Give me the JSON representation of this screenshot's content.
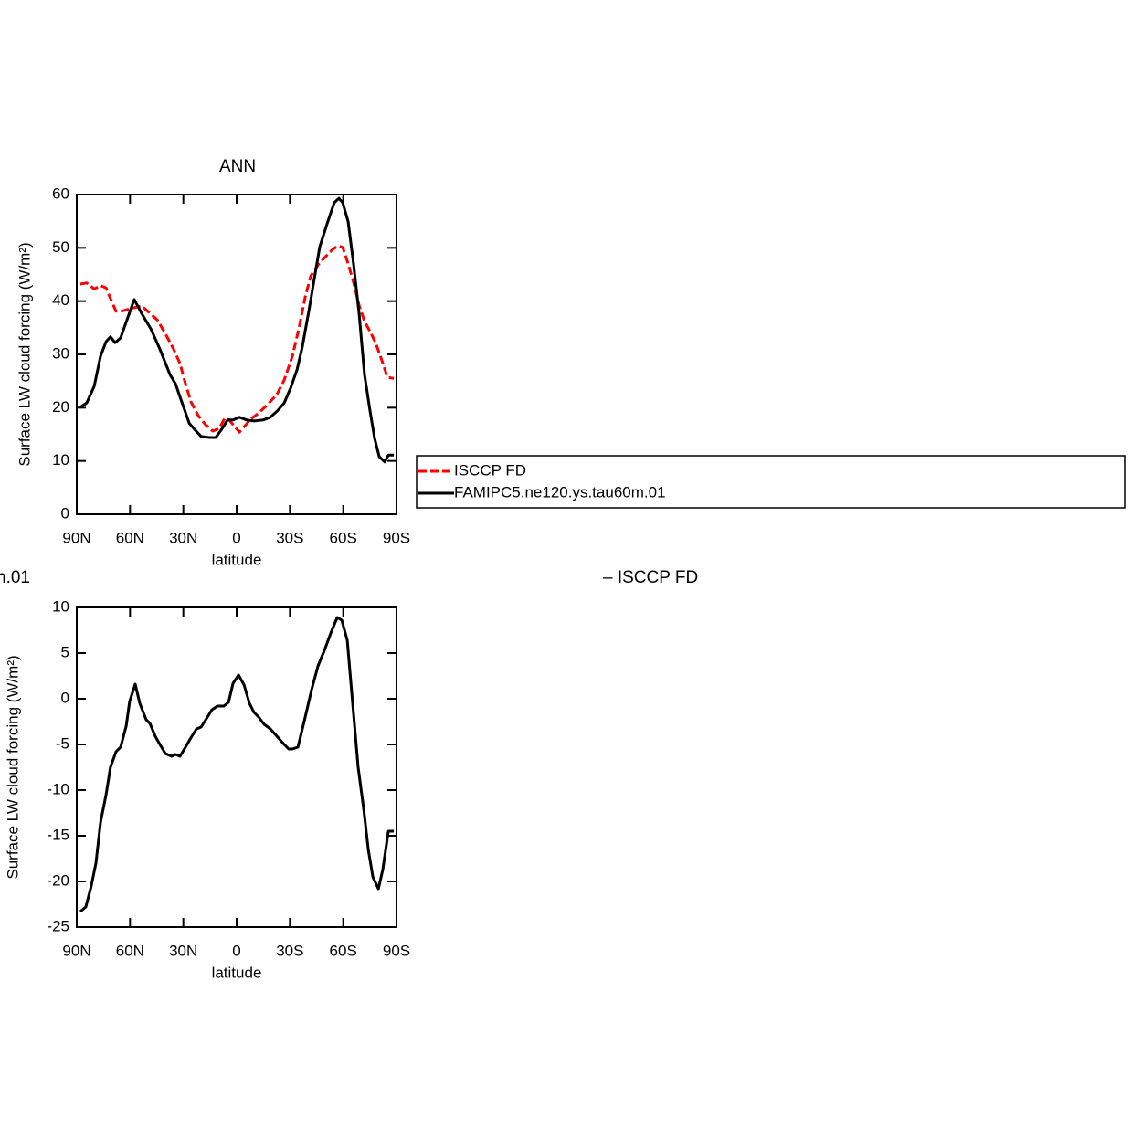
{
  "chart_data": [
    {
      "type": "line",
      "title": "ANN",
      "xlabel": "latitude",
      "ylabel": "Surface LW cloud forcing (W/m²)",
      "xlim": [
        90,
        -90
      ],
      "xticks": [
        {
          "value": 90,
          "label": "90N"
        },
        {
          "value": 60,
          "label": "60N"
        },
        {
          "value": 30,
          "label": "30N"
        },
        0,
        {
          "value": -30,
          "label": "30S"
        },
        {
          "value": -60,
          "label": "60S"
        },
        {
          "value": -90,
          "label": "90S"
        }
      ],
      "ylim": [
        0,
        60
      ],
      "yticks": [
        0,
        10,
        20,
        30,
        40,
        50,
        60
      ],
      "legend": "right",
      "series": [
        {
          "name": "ISCCP FD",
          "color": "#ff0000",
          "style": "dashed",
          "x": [
            88,
            84.4,
            80.2,
            76.6,
            73.5,
            71,
            67.9,
            63.8,
            58.6,
            53.5,
            49.4,
            44.7,
            40.1,
            35.5,
            31.9,
            28.8,
            25.7,
            21.6,
            17.5,
            13.4,
            9.8,
            6.7,
            4.1,
            1.5,
            -1.6,
            -4.7,
            -7.7,
            -12.4,
            -17.5,
            -22.7,
            -26.8,
            -31.4,
            -35,
            -38.6,
            -41.7,
            -45.8,
            -49.9,
            -54,
            -57.1,
            -59.7,
            -62.8,
            -65.9,
            -69,
            -72,
            -75.1,
            -78.2,
            -81.8,
            -84.9,
            -88.5
          ],
          "values": [
            43.2,
            43.4,
            42.3,
            42.9,
            42.5,
            40.5,
            38.1,
            38.2,
            38.7,
            39.1,
            37.9,
            36.5,
            33.9,
            31.0,
            28.3,
            24.5,
            21.1,
            18.5,
            16.8,
            15.6,
            16.1,
            18.0,
            17.7,
            16.6,
            15.4,
            16.6,
            17.8,
            19.0,
            20.6,
            22.5,
            25.2,
            29.7,
            34.8,
            40.8,
            44.7,
            46.8,
            48.3,
            49.7,
            50.4,
            50.1,
            47.0,
            43.4,
            39.1,
            36.2,
            34.3,
            32.2,
            28.8,
            25.7,
            25.5
          ]
        },
        {
          "name": "FAMIPC5.ne120.ys.tau60m.01",
          "color": "#000000",
          "style": "solid",
          "x": [
            88,
            84.4,
            80.2,
            76.6,
            73.5,
            71,
            68.4,
            65.3,
            61.7,
            57.6,
            53.5,
            48.3,
            43.2,
            37.5,
            34.4,
            31.4,
            26.7,
            23.6,
            20,
            15.4,
            11.8,
            8.7,
            5.1,
            2,
            -1.6,
            -5.7,
            -9.8,
            -14.9,
            -19,
            -23.2,
            -26.8,
            -30.4,
            -34,
            -37,
            -40.7,
            -43.7,
            -46.8,
            -50.9,
            -55,
            -57.6,
            -59.7,
            -62.8,
            -65.9,
            -69,
            -72,
            -75.1,
            -77.7,
            -80.3,
            -83.4,
            -85.4,
            -88.5
          ],
          "values": [
            20.1,
            20.9,
            24.0,
            29.7,
            32.4,
            33.3,
            32.2,
            33.1,
            36.5,
            40.3,
            37.7,
            34.8,
            31.0,
            26.2,
            24.5,
            21.6,
            17.1,
            15.9,
            14.6,
            14.4,
            14.4,
            15.8,
            17.7,
            17.7,
            18.2,
            17.7,
            17.5,
            17.7,
            18.2,
            19.5,
            20.9,
            23.7,
            27.1,
            31.4,
            38.2,
            44.2,
            50.2,
            54.5,
            58.5,
            59.3,
            58.5,
            54.9,
            46.8,
            37.4,
            26.2,
            19.4,
            14.2,
            10.8,
            9.8,
            11.1,
            11.1
          ]
        }
      ]
    },
    {
      "type": "line",
      "title_parts": [
        "n.01",
        "– ISCCP FD"
      ],
      "xlabel": "latitude",
      "ylabel": "Surface LW cloud forcing (W/m²)",
      "xlim": [
        90,
        -90
      ],
      "xticks": [
        {
          "value": 90,
          "label": "90N"
        },
        {
          "value": 60,
          "label": "60N"
        },
        {
          "value": 30,
          "label": "30N"
        },
        0,
        {
          "value": -30,
          "label": "30S"
        },
        {
          "value": -60,
          "label": "60S"
        },
        {
          "value": -90,
          "label": "90S"
        }
      ],
      "ylim": [
        -25,
        10
      ],
      "yticks": [
        -25,
        -20,
        -15,
        -10,
        -5,
        0,
        5,
        10
      ],
      "series": [
        {
          "color": "#000000",
          "style": "solid",
          "x": [
            88,
            84.9,
            81.8,
            79.2,
            76.6,
            73.5,
            71,
            67.9,
            65.3,
            62.2,
            60.2,
            57.1,
            54.5,
            50.9,
            48.8,
            45.8,
            43.2,
            40.1,
            36.5,
            34.4,
            31.9,
            28.8,
            25.2,
            22.6,
            20,
            16.4,
            13.9,
            10.8,
            7.2,
            4.6,
            2,
            -1.1,
            -4.2,
            -7.2,
            -9.8,
            -12.4,
            -15.5,
            -19,
            -22.7,
            -26.3,
            -29.3,
            -31.4,
            -34.5,
            -38.6,
            -42.2,
            -45.8,
            -49.4,
            -53,
            -56.6,
            -59.2,
            -62.3,
            -65.3,
            -68.4,
            -71.5,
            -74.1,
            -76.7,
            -79.8,
            -82.3,
            -85.4,
            -88.5
          ],
          "values": [
            -23.3,
            -22.8,
            -20.5,
            -18,
            -13.5,
            -10.5,
            -7.5,
            -5.8,
            -5.3,
            -3,
            -0.3,
            1.6,
            -0.5,
            -2.3,
            -2.7,
            -4.1,
            -5,
            -6,
            -6.3,
            -6.1,
            -6.3,
            -5.3,
            -4.1,
            -3.3,
            -3.1,
            -2,
            -1.2,
            -0.8,
            -0.8,
            -0.4,
            1.7,
            2.6,
            1.5,
            -0.5,
            -1.5,
            -2,
            -2.8,
            -3.3,
            -4.1,
            -4.9,
            -5.5,
            -5.5,
            -5.3,
            -2,
            1,
            3.6,
            5.3,
            7.2,
            8.9,
            8.6,
            6.4,
            -0.5,
            -7.5,
            -12,
            -16.5,
            -19.5,
            -20.8,
            -18.7,
            -14.5,
            -14.5
          ]
        }
      ]
    }
  ]
}
